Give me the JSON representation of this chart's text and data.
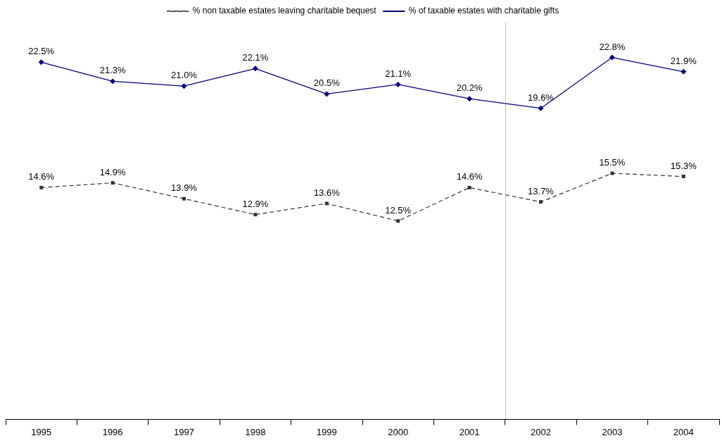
{
  "chart_data": {
    "type": "line",
    "categories": [
      "1995",
      "1996",
      "1997",
      "1998",
      "1999",
      "2000",
      "2001",
      "2002",
      "2003",
      "2004"
    ],
    "series": [
      {
        "name": "% non taxable estates leaving charitable bequest",
        "color": "#333333",
        "marker": "square",
        "line_style": "dashed",
        "values": [
          14.6,
          14.9,
          13.9,
          12.9,
          13.6,
          12.5,
          14.6,
          13.7,
          15.5,
          15.3
        ],
        "value_labels": [
          "14.6%",
          "14.9%",
          "13.9%",
          "12.9%",
          "13.6%",
          "12.5%",
          "14.6%",
          "13.7%",
          "15.5%",
          "15.3%"
        ]
      },
      {
        "name": "% of taxable estates with charitable gifts",
        "color": "#000080",
        "marker": "diamond",
        "line_style": "solid",
        "values": [
          22.5,
          21.3,
          21.0,
          22.1,
          20.5,
          21.1,
          20.2,
          19.6,
          22.8,
          21.9
        ],
        "value_labels": [
          "22.5%",
          "21.3%",
          "21.0%",
          "22.1%",
          "20.5%",
          "21.1%",
          "20.2%",
          "19.6%",
          "22.8%",
          "21.9%"
        ]
      }
    ],
    "ylim": [
      0,
      25
    ],
    "tick_labels": "x",
    "legend": "top",
    "grid": false
  }
}
